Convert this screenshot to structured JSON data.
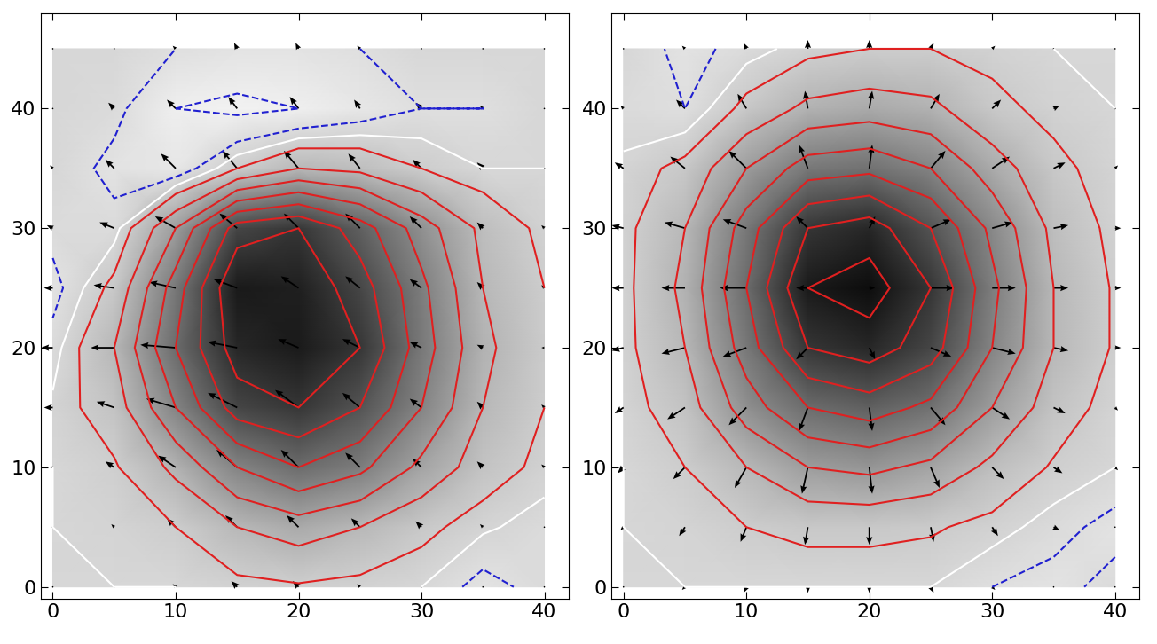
{
  "chart_data": [
    {
      "type": "heatmap",
      "x": [
        0,
        5,
        10,
        15,
        20,
        25,
        30,
        35,
        40
      ],
      "y": [
        0,
        5,
        10,
        15,
        20,
        25,
        30,
        35,
        40,
        45
      ],
      "cells": [
        [
          0,
          0,
          0,
          50,
          80,
          50,
          0,
          -150,
          -50
        ],
        [
          0,
          20,
          100,
          300,
          400,
          300,
          150,
          20,
          -50
        ],
        [
          0,
          80,
          350,
          700,
          900,
          750,
          450,
          200,
          50
        ],
        [
          20,
          200,
          700,
          1200,
          1300,
          1100,
          700,
          300,
          100
        ],
        [
          -50,
          300,
          900,
          1400,
          1500,
          1300,
          800,
          350,
          120
        ],
        [
          -150,
          150,
          800,
          1500,
          1450,
          1200,
          750,
          300,
          100
        ],
        [
          -50,
          -50,
          500,
          1200,
          1300,
          1000,
          600,
          250,
          50
        ],
        [
          0,
          -150,
          -200,
          100,
          300,
          250,
          100,
          0,
          0
        ],
        [
          0,
          -50,
          -300,
          -350,
          -300,
          -200,
          -100,
          -100,
          0
        ],
        [
          0,
          0,
          -100,
          -150,
          -150,
          -100,
          0,
          0,
          0
        ]
      ],
      "color_range": [
        -600,
        1700
      ],
      "contours": [
        {
          "color": "#2020d0",
          "levels": [
            -300,
            -100
          ]
        },
        {
          "color": "#ffffff",
          "levels": [
            0
          ]
        },
        {
          "color": "#e02020",
          "levels": [
            100,
            300,
            500,
            700,
            900,
            1100,
            1300,
            1500
          ]
        }
      ],
      "vectors": {
        "u": [
          [
            0,
            0,
            -0.1,
            -0.2,
            -0.2,
            -0.1,
            0,
            0,
            0
          ],
          [
            0,
            -0.1,
            -0.3,
            -0.4,
            -0.4,
            -0.3,
            -0.2,
            -0.1,
            0
          ],
          [
            -0.1,
            -0.3,
            -0.6,
            -0.7,
            -0.6,
            -0.5,
            -0.3,
            -0.2,
            -0.1
          ],
          [
            -0.3,
            -0.6,
            -1.0,
            -1.0,
            -0.8,
            -0.6,
            -0.4,
            -0.2,
            -0.1
          ],
          [
            -0.4,
            -0.8,
            -1.2,
            -1.0,
            -0.7,
            -0.6,
            -0.4,
            -0.2,
            -0.1
          ],
          [
            -0.3,
            -0.7,
            -0.9,
            -0.8,
            -0.6,
            -0.5,
            -0.4,
            -0.2,
            -0.1
          ],
          [
            -0.2,
            -0.5,
            -0.7,
            -0.6,
            -0.5,
            -0.5,
            -0.4,
            -0.2,
            -0.1
          ],
          [
            -0.1,
            -0.3,
            -0.5,
            -0.5,
            -0.5,
            -0.4,
            -0.3,
            -0.2,
            0
          ],
          [
            0,
            -0.2,
            -0.3,
            -0.3,
            -0.3,
            -0.2,
            -0.2,
            -0.1,
            0
          ],
          [
            0,
            0,
            -0.1,
            -0.1,
            -0.1,
            -0.1,
            0,
            0,
            0
          ]
        ],
        "v": [
          [
            0,
            0,
            0.1,
            0.2,
            0.2,
            0.1,
            0,
            0,
            0
          ],
          [
            0,
            0.1,
            0.3,
            0.4,
            0.4,
            0.3,
            0.2,
            0.1,
            0
          ],
          [
            0,
            0.2,
            0.4,
            0.6,
            0.6,
            0.5,
            0.3,
            0.2,
            0.1
          ],
          [
            0,
            0.2,
            0.3,
            0.5,
            0.6,
            0.5,
            0.3,
            0.2,
            0.1
          ],
          [
            0,
            0,
            0.1,
            0.2,
            0.3,
            0.3,
            0.2,
            0.1,
            0
          ],
          [
            0,
            0.1,
            0.2,
            0.3,
            0.4,
            0.4,
            0.3,
            0.2,
            0.1
          ],
          [
            0.1,
            0.2,
            0.4,
            0.5,
            0.5,
            0.5,
            0.4,
            0.2,
            0.1
          ],
          [
            0.1,
            0.3,
            0.5,
            0.6,
            0.6,
            0.5,
            0.3,
            0.2,
            0
          ],
          [
            0,
            0.2,
            0.3,
            0.4,
            0.4,
            0.3,
            0.2,
            0.1,
            0
          ],
          [
            0,
            0,
            0.1,
            0.2,
            0.2,
            0.1,
            0,
            0,
            0
          ]
        ]
      },
      "xlim": [
        -1,
        42
      ],
      "ylim": [
        -1,
        48
      ],
      "xticks": [
        0,
        10,
        20,
        30,
        40
      ],
      "yticks": [
        0,
        10,
        20,
        30,
        40
      ]
    },
    {
      "type": "heatmap",
      "x": [
        0,
        5,
        10,
        15,
        20,
        25,
        30,
        35,
        40
      ],
      "y": [
        0,
        5,
        10,
        15,
        20,
        25,
        30,
        35,
        40,
        45
      ],
      "cells": [
        [
          0,
          0,
          0,
          0,
          0,
          0,
          -100,
          -150,
          -50
        ],
        [
          0,
          20,
          100,
          150,
          150,
          120,
          50,
          -50,
          -150
        ],
        [
          0,
          100,
          300,
          500,
          550,
          450,
          250,
          80,
          0
        ],
        [
          30,
          200,
          600,
          900,
          1000,
          850,
          500,
          200,
          30
        ],
        [
          50,
          300,
          800,
          1300,
          1400,
          1200,
          700,
          300,
          80
        ],
        [
          50,
          350,
          900,
          1500,
          1600,
          1300,
          750,
          300,
          80
        ],
        [
          50,
          300,
          800,
          1300,
          1400,
          1100,
          650,
          250,
          50
        ],
        [
          20,
          150,
          500,
          800,
          850,
          700,
          400,
          150,
          20
        ],
        [
          -50,
          -100,
          150,
          350,
          400,
          350,
          150,
          50,
          0
        ],
        [
          0,
          -150,
          -50,
          50,
          100,
          100,
          50,
          0,
          0
        ]
      ],
      "color_range": [
        -600,
        1700
      ],
      "contours": [
        {
          "color": "#2020d0",
          "levels": [
            -300,
            -100
          ]
        },
        {
          "color": "#ffffff",
          "levels": [
            0
          ]
        },
        {
          "color": "#e02020",
          "levels": [
            100,
            300,
            500,
            700,
            900,
            1100,
            1300,
            1500
          ]
        }
      ],
      "vectors": {
        "u": [
          [
            0,
            -0.1,
            -0.1,
            0,
            0,
            0.1,
            0.1,
            0,
            0
          ],
          [
            -0.1,
            -0.2,
            -0.2,
            -0.1,
            0,
            0.1,
            0.2,
            0.2,
            0
          ],
          [
            -0.2,
            -0.4,
            -0.4,
            -0.2,
            0.1,
            0.3,
            0.4,
            0.3,
            0.1
          ],
          [
            -0.3,
            -0.6,
            -0.6,
            -0.3,
            0.1,
            0.5,
            0.6,
            0.4,
            0.1
          ],
          [
            -0.4,
            -0.8,
            -0.8,
            -0.4,
            0.2,
            0.7,
            0.8,
            0.5,
            0.2
          ],
          [
            -0.4,
            -0.8,
            -0.9,
            -0.4,
            0.2,
            0.8,
            0.8,
            0.5,
            0.2
          ],
          [
            -0.4,
            -0.7,
            -0.8,
            -0.4,
            0.2,
            0.7,
            0.7,
            0.5,
            0.2
          ],
          [
            -0.3,
            -0.5,
            -0.6,
            -0.3,
            0.1,
            0.5,
            0.6,
            0.4,
            0.1
          ],
          [
            -0.1,
            -0.3,
            -0.3,
            -0.1,
            0.1,
            0.3,
            0.3,
            0.2,
            0
          ],
          [
            0,
            -0.1,
            -0.1,
            0,
            0,
            0.1,
            0.1,
            0,
            0
          ]
        ],
        "v": [
          [
            0,
            -0.1,
            -0.2,
            -0.2,
            -0.2,
            -0.2,
            -0.1,
            0,
            0
          ],
          [
            -0.1,
            -0.3,
            -0.5,
            -0.6,
            -0.6,
            -0.5,
            -0.3,
            -0.1,
            0
          ],
          [
            -0.2,
            -0.4,
            -0.7,
            -0.9,
            -0.9,
            -0.7,
            -0.4,
            -0.2,
            -0.1
          ],
          [
            -0.2,
            -0.4,
            -0.6,
            -0.8,
            -0.8,
            -0.6,
            -0.4,
            -0.2,
            -0.1
          ],
          [
            -0.1,
            -0.2,
            -0.3,
            -0.4,
            -0.4,
            -0.3,
            -0.2,
            -0.1,
            0
          ],
          [
            0,
            0,
            0,
            0,
            0,
            0,
            0,
            0,
            0
          ],
          [
            0.1,
            0.2,
            0.3,
            0.4,
            0.4,
            0.3,
            0.2,
            0.1,
            0
          ],
          [
            0.2,
            0.4,
            0.6,
            0.8,
            0.8,
            0.6,
            0.4,
            0.2,
            0.1
          ],
          [
            0.1,
            0.3,
            0.5,
            0.6,
            0.6,
            0.5,
            0.3,
            0.1,
            0
          ],
          [
            0,
            0.1,
            0.2,
            0.3,
            0.3,
            0.2,
            0.1,
            0,
            0
          ]
        ]
      },
      "xlim": [
        -1,
        42
      ],
      "ylim": [
        -1,
        48
      ],
      "xticks": [
        0,
        10,
        20,
        30,
        40
      ],
      "yticks": [
        0,
        10,
        20,
        30,
        40
      ]
    }
  ]
}
